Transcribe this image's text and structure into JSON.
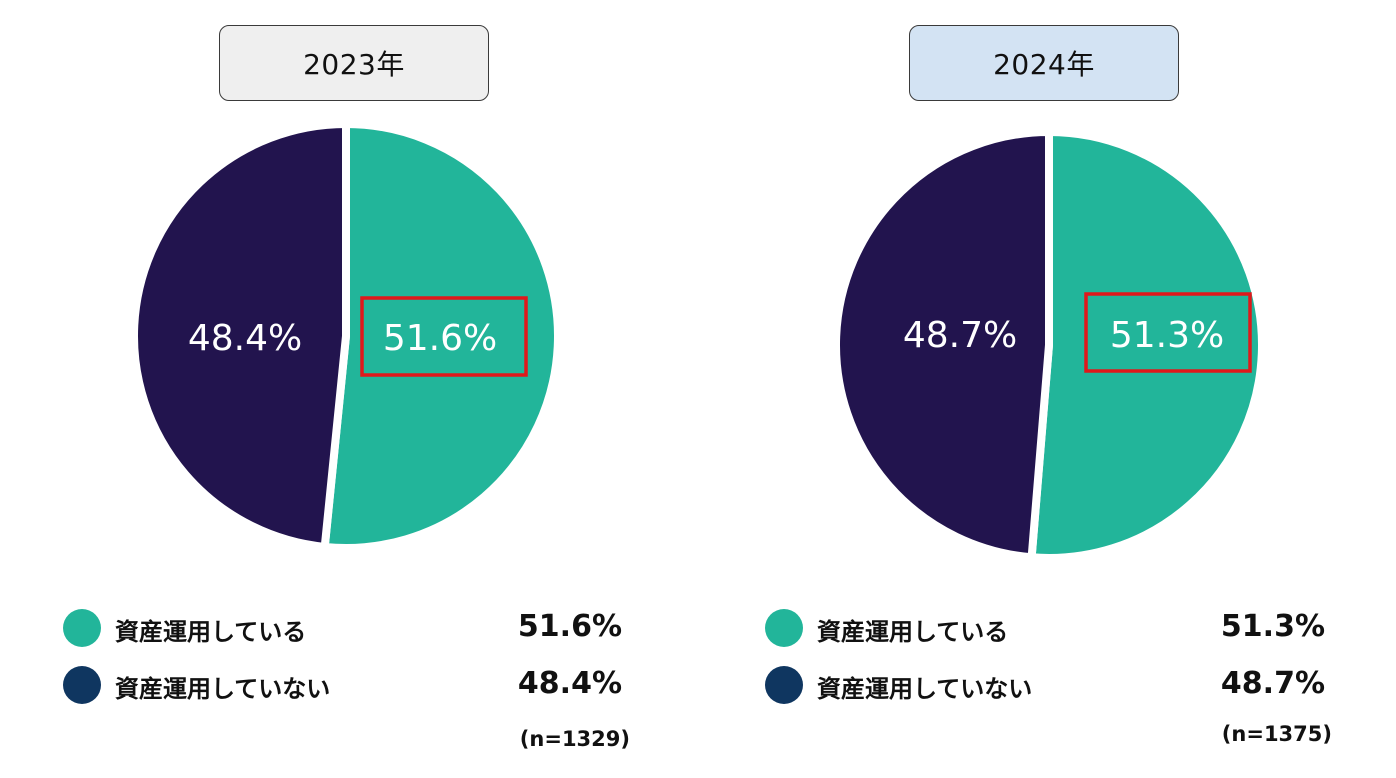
{
  "colors": {
    "investing": "#22b59a",
    "not_investing": "#22144e",
    "legend_not_investing": "#0f3660",
    "highlight_box": "#e0181b",
    "year_2023_bg": "#efefef",
    "year_2024_bg": "#d3e3f3"
  },
  "chart_data": [
    {
      "type": "pie",
      "title": "2023年",
      "categories": [
        "資産運用している",
        "資産運用していない"
      ],
      "values": [
        51.6,
        48.4
      ],
      "slice_labels": [
        "51.6%",
        "48.4%"
      ],
      "highlighted": "資産運用している",
      "legend": [
        {
          "label": "資産運用している",
          "value": "51.6%"
        },
        {
          "label": "資産運用していない",
          "value": "48.4%"
        }
      ],
      "n_label": "(n=1329)"
    },
    {
      "type": "pie",
      "title": "2024年",
      "categories": [
        "資産運用している",
        "資産運用していない"
      ],
      "values": [
        51.3,
        48.7
      ],
      "slice_labels": [
        "51.3%",
        "48.7%"
      ],
      "highlighted": "資産運用している",
      "legend": [
        {
          "label": "資産運用している",
          "value": "51.3%"
        },
        {
          "label": "資産運用していない",
          "value": "48.7%"
        }
      ],
      "n_label": "(n=1375)"
    }
  ]
}
